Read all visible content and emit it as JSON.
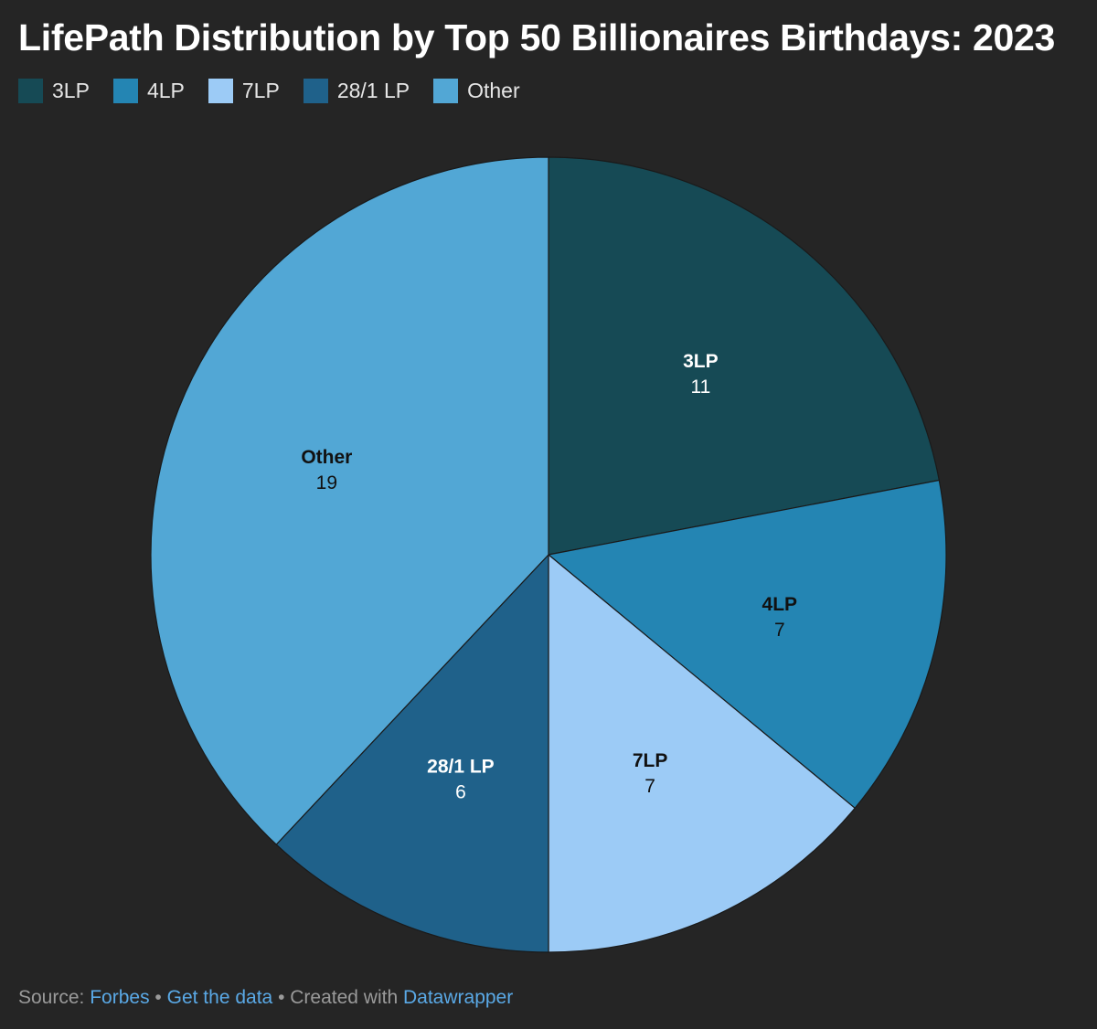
{
  "chart_data": {
    "type": "pie",
    "title": "LifePath Distribution by Top 50 Billionaires Birthdays: 2023",
    "categories": [
      "3LP",
      "4LP",
      "7LP",
      "28/1 LP",
      "Other"
    ],
    "values": [
      11,
      7,
      7,
      6,
      19
    ],
    "colors": [
      "#164a55",
      "#2485b3",
      "#9ccbf6",
      "#1f618a",
      "#52a7d5"
    ],
    "label_colors": [
      "#ffffff",
      "#111111",
      "#111111",
      "#ffffff",
      "#111111"
    ],
    "legend_position": "top-left"
  },
  "footer": {
    "source_label": "Source:",
    "source_link": "Forbes",
    "separator": "•",
    "data_link": "Get the data",
    "created_label": "Created with",
    "tool_link": "Datawrapper"
  }
}
